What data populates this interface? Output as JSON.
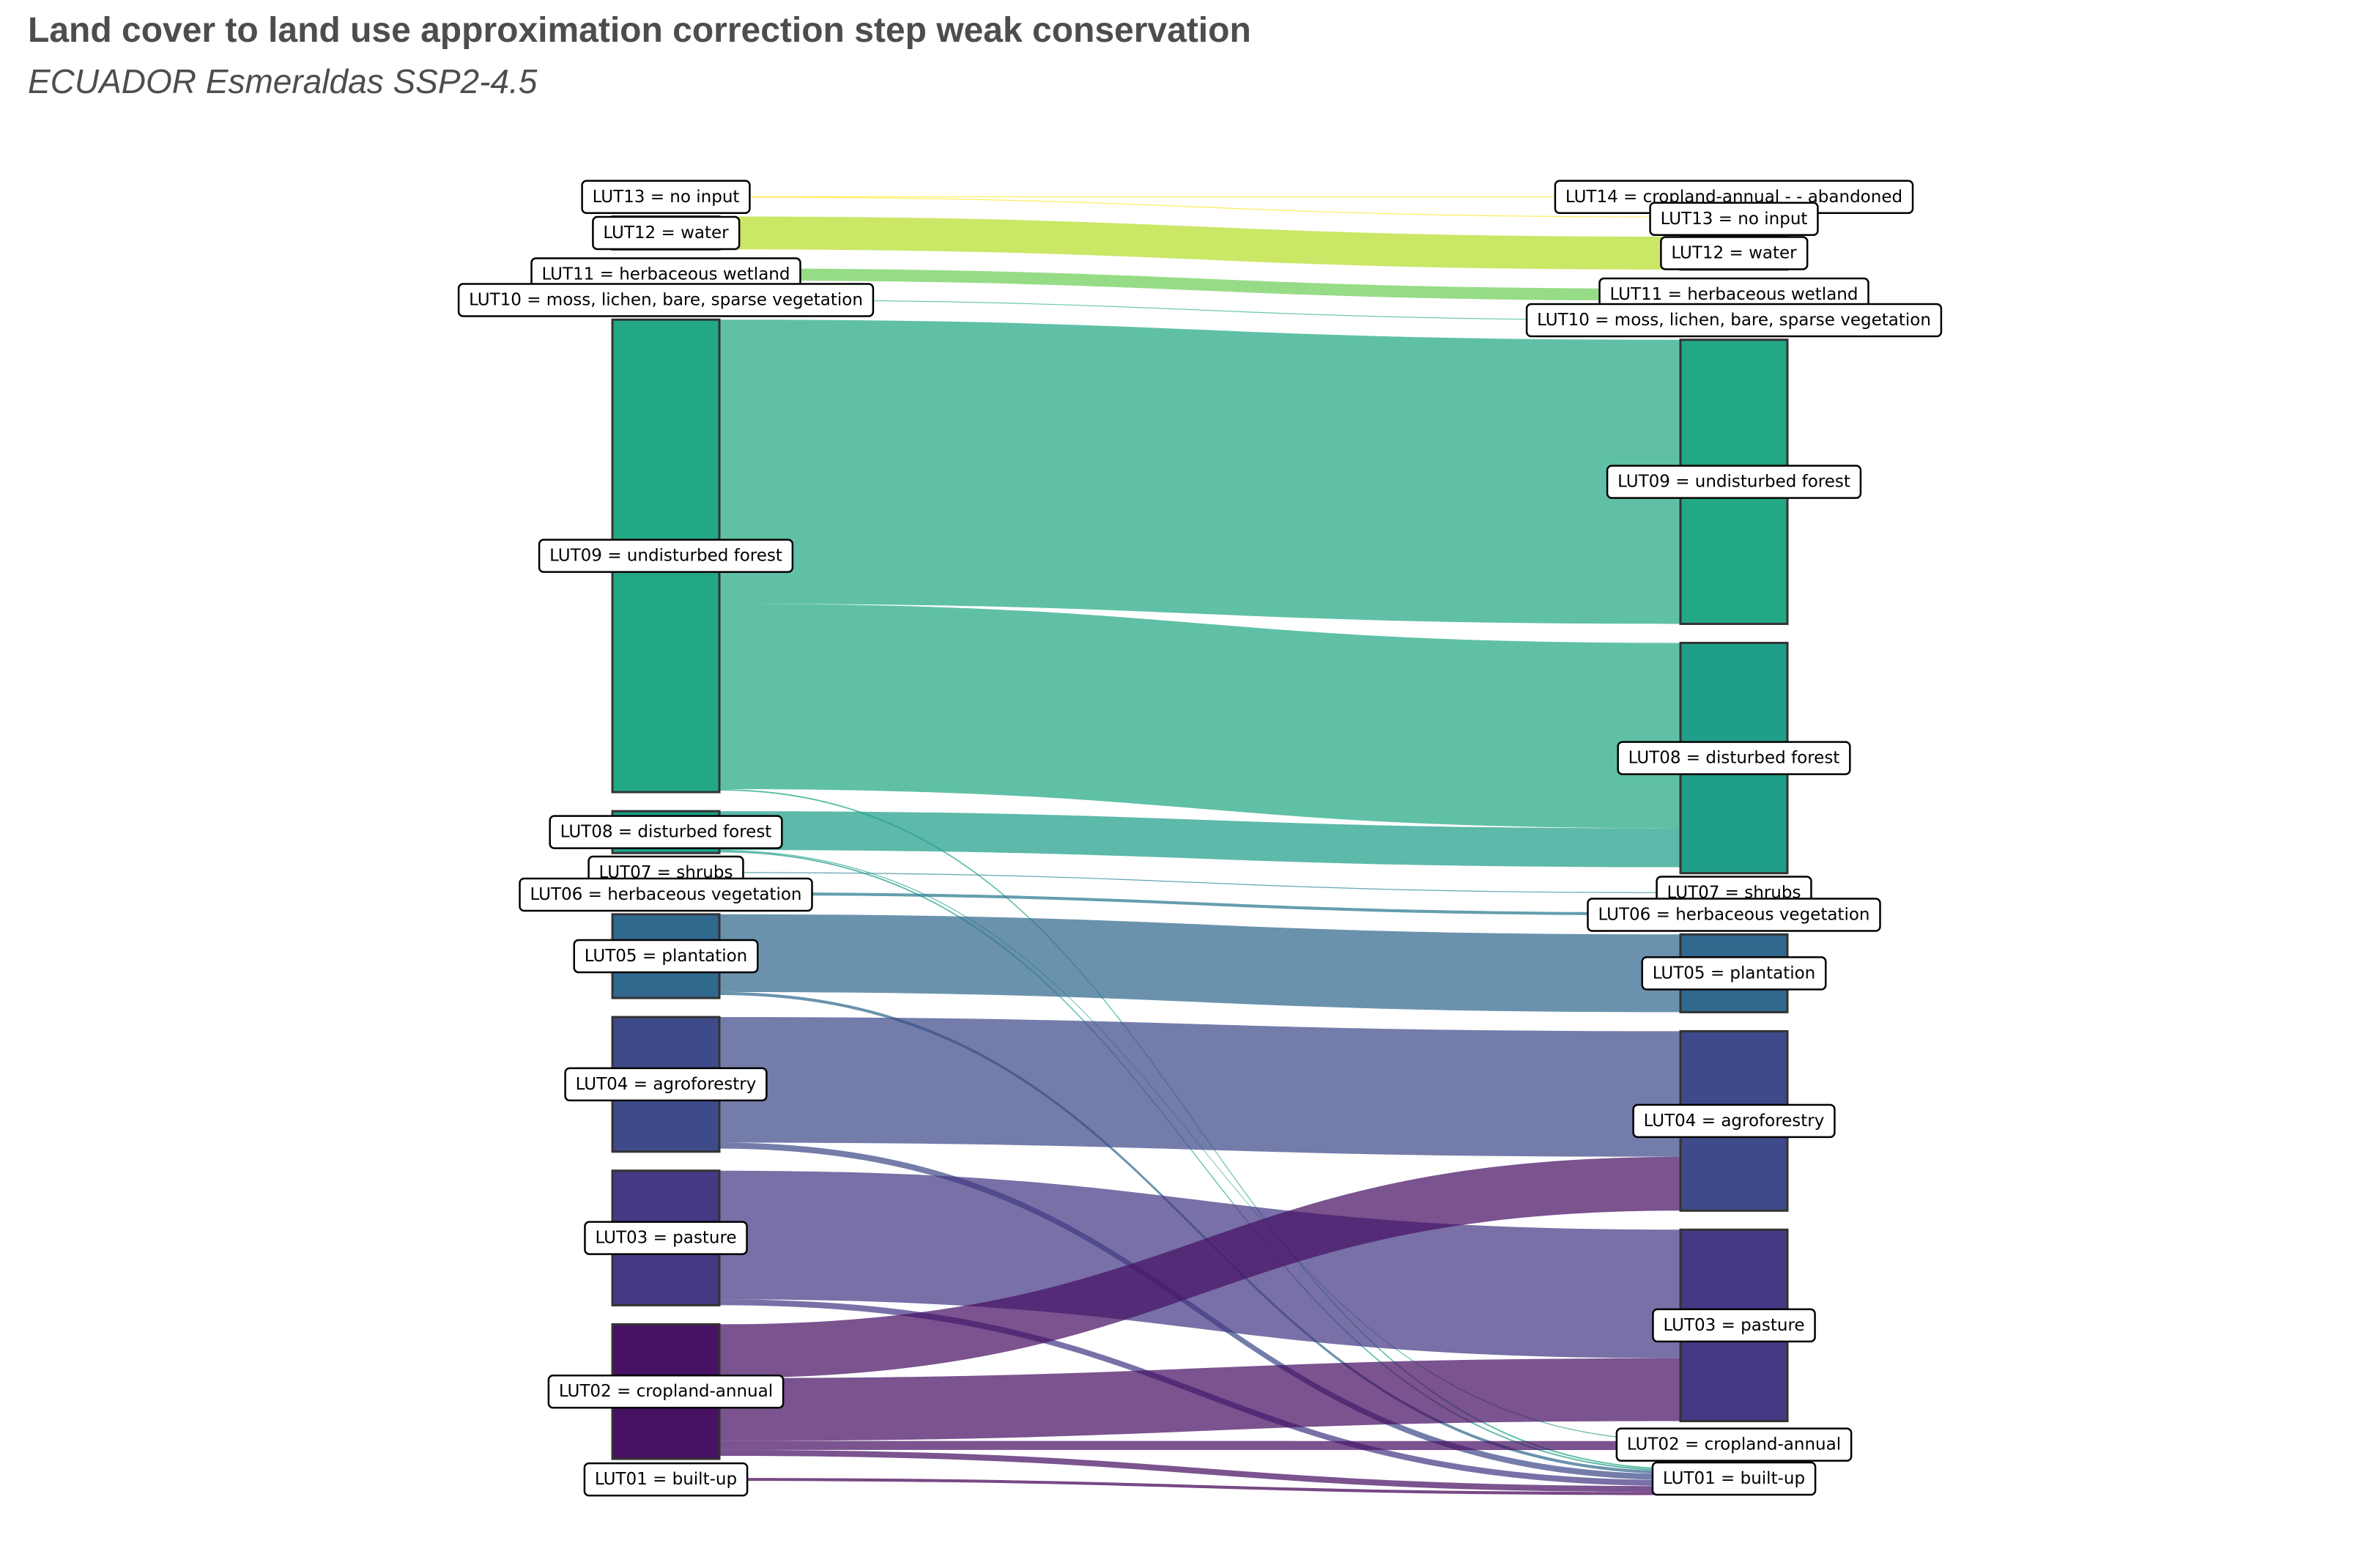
{
  "header": {
    "title": "Land cover to land use approximation correction step weak conservation",
    "subtitle": "ECUADOR Esmeraldas SSP2-4.5"
  },
  "chart_data": {
    "type": "sankey",
    "left_nodes": [
      {
        "id": "L13",
        "label": "LUT13 = no input",
        "color": "#fde725",
        "value": 0.3
      },
      {
        "id": "L12",
        "label": "LUT12 = water",
        "color": "#b5de2b",
        "value": 11
      },
      {
        "id": "L11",
        "label": "LUT11 = herbaceous wetland",
        "color": "#6ece58",
        "value": 4
      },
      {
        "id": "L10",
        "label": "LUT10 = moss, lichen, bare, sparse vegetation",
        "color": "#35b779",
        "value": 0.3
      },
      {
        "id": "L09",
        "label": "LUT09 = undisturbed forest",
        "color": "#22a884",
        "value": 158
      },
      {
        "id": "L08",
        "label": "LUT08 = disturbed forest",
        "color": "#1f9e89",
        "value": 14
      },
      {
        "id": "L07",
        "label": "LUT07 = shrubs",
        "color": "#26828e",
        "value": 0.3
      },
      {
        "id": "L06",
        "label": "LUT06 = herbaceous vegetation",
        "color": "#2a788e",
        "value": 1
      },
      {
        "id": "L05",
        "label": "LUT05 = plantation",
        "color": "#31688e",
        "value": 28
      },
      {
        "id": "L04",
        "label": "LUT04 = agroforestry",
        "color": "#3e4a89",
        "value": 45
      },
      {
        "id": "L03",
        "label": "LUT03 = pasture",
        "color": "#443983",
        "value": 45
      },
      {
        "id": "L02",
        "label": "LUT02 = cropland-annual",
        "color": "#471164",
        "value": 45
      },
      {
        "id": "L01",
        "label": "LUT01 = built-up",
        "color": "#440154",
        "value": 1
      }
    ],
    "right_nodes": [
      {
        "id": "R14",
        "label": "LUT14 = cropland-annual - - abandoned",
        "color": "#fde725",
        "value": 0.1
      },
      {
        "id": "R13",
        "label": "LUT13 = no input",
        "color": "#fde725",
        "value": 0.2
      },
      {
        "id": "R12",
        "label": "LUT12 = water",
        "color": "#b5de2b",
        "value": 11
      },
      {
        "id": "R11",
        "label": "LUT11 = herbaceous wetland",
        "color": "#6ece58",
        "value": 4
      },
      {
        "id": "R10",
        "label": "LUT10 = moss, lichen, bare, sparse vegetation",
        "color": "#35b779",
        "value": 0.3
      },
      {
        "id": "R09",
        "label": "LUT09 = undisturbed forest",
        "color": "#22a884",
        "value": 95
      },
      {
        "id": "R08",
        "label": "LUT08 = disturbed forest",
        "color": "#1f9e89",
        "value": 77
      },
      {
        "id": "R07",
        "label": "LUT07 = shrubs",
        "color": "#26828e",
        "value": 0.3
      },
      {
        "id": "R06",
        "label": "LUT06 = herbaceous vegetation",
        "color": "#2a788e",
        "value": 1
      },
      {
        "id": "R05",
        "label": "LUT05 = plantation",
        "color": "#31688e",
        "value": 26
      },
      {
        "id": "R04",
        "label": "LUT04 = agroforestry",
        "color": "#3e4a89",
        "value": 60
      },
      {
        "id": "R03",
        "label": "LUT03 = pasture",
        "color": "#443983",
        "value": 64
      },
      {
        "id": "R02",
        "label": "LUT02 = cropland-annual",
        "color": "#471164",
        "value": 3
      },
      {
        "id": "R01",
        "label": "LUT01 = built-up",
        "color": "#440154",
        "value": 7
      }
    ],
    "links": [
      {
        "source": "L13",
        "target": "R14",
        "value": 0.1
      },
      {
        "source": "L13",
        "target": "R13",
        "value": 0.2
      },
      {
        "source": "L12",
        "target": "R12",
        "value": 11
      },
      {
        "source": "L11",
        "target": "R11",
        "value": 4
      },
      {
        "source": "L10",
        "target": "R10",
        "value": 0.3
      },
      {
        "source": "L09",
        "target": "R09",
        "value": 95
      },
      {
        "source": "L09",
        "target": "R08",
        "value": 62
      },
      {
        "source": "L09",
        "target": "R01",
        "value": 0.5
      },
      {
        "source": "L08",
        "target": "R08",
        "value": 13
      },
      {
        "source": "L08",
        "target": "R01",
        "value": 0.5
      },
      {
        "source": "L08",
        "target": "R02",
        "value": 0.3
      },
      {
        "source": "L07",
        "target": "R07",
        "value": 0.3
      },
      {
        "source": "L06",
        "target": "R06",
        "value": 1
      },
      {
        "source": "L05",
        "target": "R05",
        "value": 26
      },
      {
        "source": "L05",
        "target": "R01",
        "value": 1
      },
      {
        "source": "L04",
        "target": "R04",
        "value": 42
      },
      {
        "source": "L04",
        "target": "R01",
        "value": 2
      },
      {
        "source": "L03",
        "target": "R03",
        "value": 43
      },
      {
        "source": "L03",
        "target": "R01",
        "value": 2
      },
      {
        "source": "L02",
        "target": "R04",
        "value": 18
      },
      {
        "source": "L02",
        "target": "R03",
        "value": 21
      },
      {
        "source": "L02",
        "target": "R02",
        "value": 3
      },
      {
        "source": "L02",
        "target": "R01",
        "value": 2
      },
      {
        "source": "L01",
        "target": "R01",
        "value": 1
      }
    ]
  }
}
